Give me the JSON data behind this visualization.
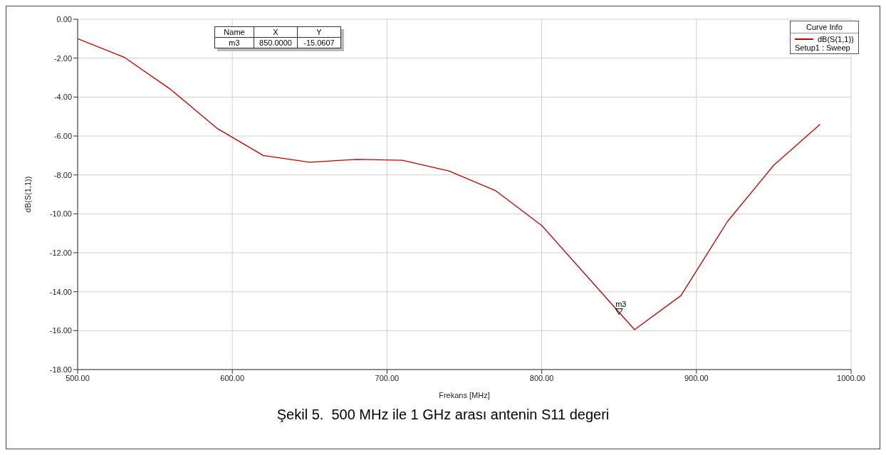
{
  "chart_data": {
    "type": "line",
    "xlabel": "Frekans [MHz]",
    "ylabel": "dB(S(1,1))",
    "legend_title": "Curve Info",
    "x": [
      500,
      530,
      560,
      590,
      620,
      650,
      680,
      710,
      740,
      770,
      800,
      860,
      890,
      920,
      950,
      980
    ],
    "series": [
      {
        "name": "dB(S(1,1))",
        "color": "#c00000",
        "values": [
          -1.0,
          -1.95,
          -3.6,
          -5.6,
          -7.0,
          -7.35,
          -7.2,
          -7.25,
          -7.8,
          -8.8,
          -10.6,
          -15.95,
          -14.2,
          -10.4,
          -7.5,
          -5.4
        ]
      }
    ],
    "xlim": [
      500,
      1000
    ],
    "xticks": [
      {
        "value": 500,
        "label": "500.00"
      },
      {
        "value": 600,
        "label": "600.00"
      },
      {
        "value": 700,
        "label": "700.00"
      },
      {
        "value": 800,
        "label": "800.00"
      },
      {
        "value": 900,
        "label": "900.00"
      },
      {
        "value": 1000,
        "label": "1000.00"
      }
    ],
    "ylim": [
      -18,
      0
    ],
    "yticks": [
      {
        "value": -18,
        "label": "-18.00"
      },
      {
        "value": -16,
        "label": "-16.00"
      },
      {
        "value": -14,
        "label": "-14.00"
      },
      {
        "value": -12,
        "label": "-12.00"
      },
      {
        "value": -10,
        "label": "-10.00"
      },
      {
        "value": -8,
        "label": "-8.00"
      },
      {
        "value": -6,
        "label": "-6.00"
      },
      {
        "value": -4,
        "label": "-4.00"
      },
      {
        "value": -2,
        "label": "-2.00"
      },
      {
        "value": 0,
        "label": "0.00"
      }
    ],
    "grid": true,
    "legend": "top right",
    "annotations": [
      {
        "text": "m3",
        "x": 850,
        "y": -15.0607
      },
      "Name",
      "X",
      "Y",
      "m3",
      "850.0000",
      "-15.0607",
      "Setup1 : Sweep",
      "Şekil 5.  500 MHz ile 1 GHz arası antenin S11 degeri"
    ]
  }
}
